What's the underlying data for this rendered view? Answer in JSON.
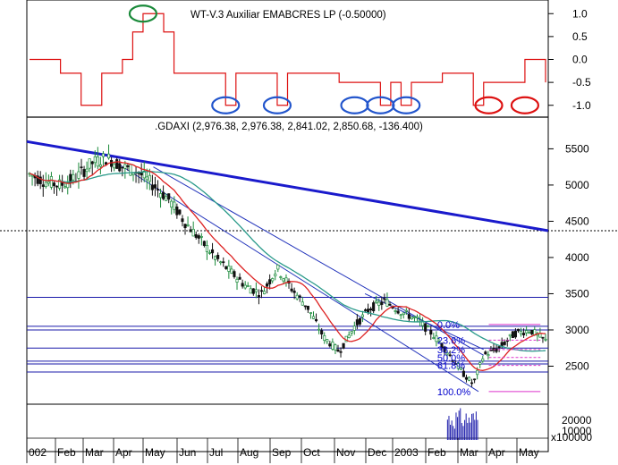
{
  "chart_data": [
    {
      "type": "line",
      "title": "WT-V.3 Auxiliar EMABCRES LP (-0.50000)",
      "yticks": [
        "1.0",
        "0.5",
        "0.0",
        "-0.5",
        "-1.0"
      ],
      "ylim": [
        -1.2,
        1.2
      ],
      "series": [
        {
          "color": "#dd1111",
          "x": [
            0,
            6,
            10,
            14,
            16,
            18,
            20,
            22,
            26,
            28,
            32,
            36,
            38,
            40,
            44,
            48,
            50,
            52,
            56,
            60,
            64,
            68,
            70,
            72,
            74,
            76,
            80,
            84,
            86,
            88,
            90,
            94,
            96,
            100
          ],
          "values": [
            0.0,
            -0.3,
            -1.0,
            -0.3,
            -0.3,
            0.0,
            0.6,
            1.0,
            0.6,
            -0.3,
            -0.3,
            -0.3,
            -1.0,
            -0.3,
            -0.3,
            -1.0,
            -0.3,
            -0.3,
            -0.3,
            -0.5,
            -0.5,
            -1.0,
            -0.5,
            -1.0,
            -0.5,
            -0.5,
            -0.3,
            -0.3,
            -1.0,
            -0.5,
            -0.5,
            -0.5,
            0.0,
            -0.5
          ]
        }
      ],
      "markers": [
        {
          "x": 22,
          "y": 1.0,
          "color": "#1a8a3a"
        },
        {
          "x": 38,
          "y": -1.0,
          "color": "#2255cc"
        },
        {
          "x": 48,
          "y": -1.0,
          "color": "#2255cc"
        },
        {
          "x": 63,
          "y": -1.0,
          "color": "#2255cc"
        },
        {
          "x": 68,
          "y": -1.0,
          "color": "#2255cc"
        },
        {
          "x": 73,
          "y": -1.0,
          "color": "#2255cc"
        },
        {
          "x": 89,
          "y": -1.0,
          "color": "#dd1111"
        },
        {
          "x": 96,
          "y": -1.0,
          "color": "#dd1111"
        }
      ]
    },
    {
      "type": "candlestick",
      "title": ".GDAXI (2,976.38, 2,976.38, 2,841.02, 2,850.68, -136.400)",
      "yticks": [
        "5500",
        "5000",
        "4500",
        "4000",
        "3500",
        "3000",
        "2500"
      ],
      "ylim": [
        2000,
        5900
      ],
      "xticks": [
        "002",
        "Feb",
        "Mar",
        "Apr",
        "May",
        "Jun",
        "Jul",
        "Aug",
        "Sep",
        "Oct",
        "Nov",
        "Dec",
        "2003",
        "Feb",
        "Mar",
        "Apr",
        "May"
      ],
      "price_path": [
        [
          0,
          5150
        ],
        [
          3,
          5050
        ],
        [
          6,
          5000
        ],
        [
          9,
          5100
        ],
        [
          12,
          5300
        ],
        [
          15,
          5380
        ],
        [
          18,
          5250
        ],
        [
          21,
          5180
        ],
        [
          24,
          5000
        ],
        [
          27,
          4800
        ],
        [
          30,
          4500
        ],
        [
          33,
          4250
        ],
        [
          36,
          4000
        ],
        [
          39,
          3800
        ],
        [
          42,
          3600
        ],
        [
          45,
          3500
        ],
        [
          48,
          3850
        ],
        [
          51,
          3550
        ],
        [
          54,
          3300
        ],
        [
          57,
          2900
        ],
        [
          60,
          2700
        ],
        [
          63,
          3050
        ],
        [
          66,
          3300
        ],
        [
          69,
          3400
        ],
        [
          72,
          3250
        ],
        [
          75,
          3150
        ],
        [
          78,
          2950
        ],
        [
          81,
          2700
        ],
        [
          84,
          2400
        ],
        [
          86,
          2250
        ],
        [
          88,
          2650
        ],
        [
          91,
          2750
        ],
        [
          94,
          2950
        ],
        [
          97,
          3000
        ],
        [
          100,
          2850
        ]
      ],
      "ma_fast_color": "#dd2222",
      "ma_slow_color": "#2a9a8a",
      "horizontal_levels": [
        3450,
        3050,
        3000,
        2750,
        2570,
        2530,
        2420
      ],
      "fibonacci": {
        "labels": [
          "0.0%",
          "23.6%",
          "38.2%",
          "50.0%",
          "61.8%",
          "100.0%"
        ],
        "levels": [
          3075,
          2860,
          2730,
          2620,
          2510,
          2150
        ]
      },
      "volume_ticks": [
        "20000",
        "10000"
      ],
      "volume_unit": "x100000"
    }
  ]
}
